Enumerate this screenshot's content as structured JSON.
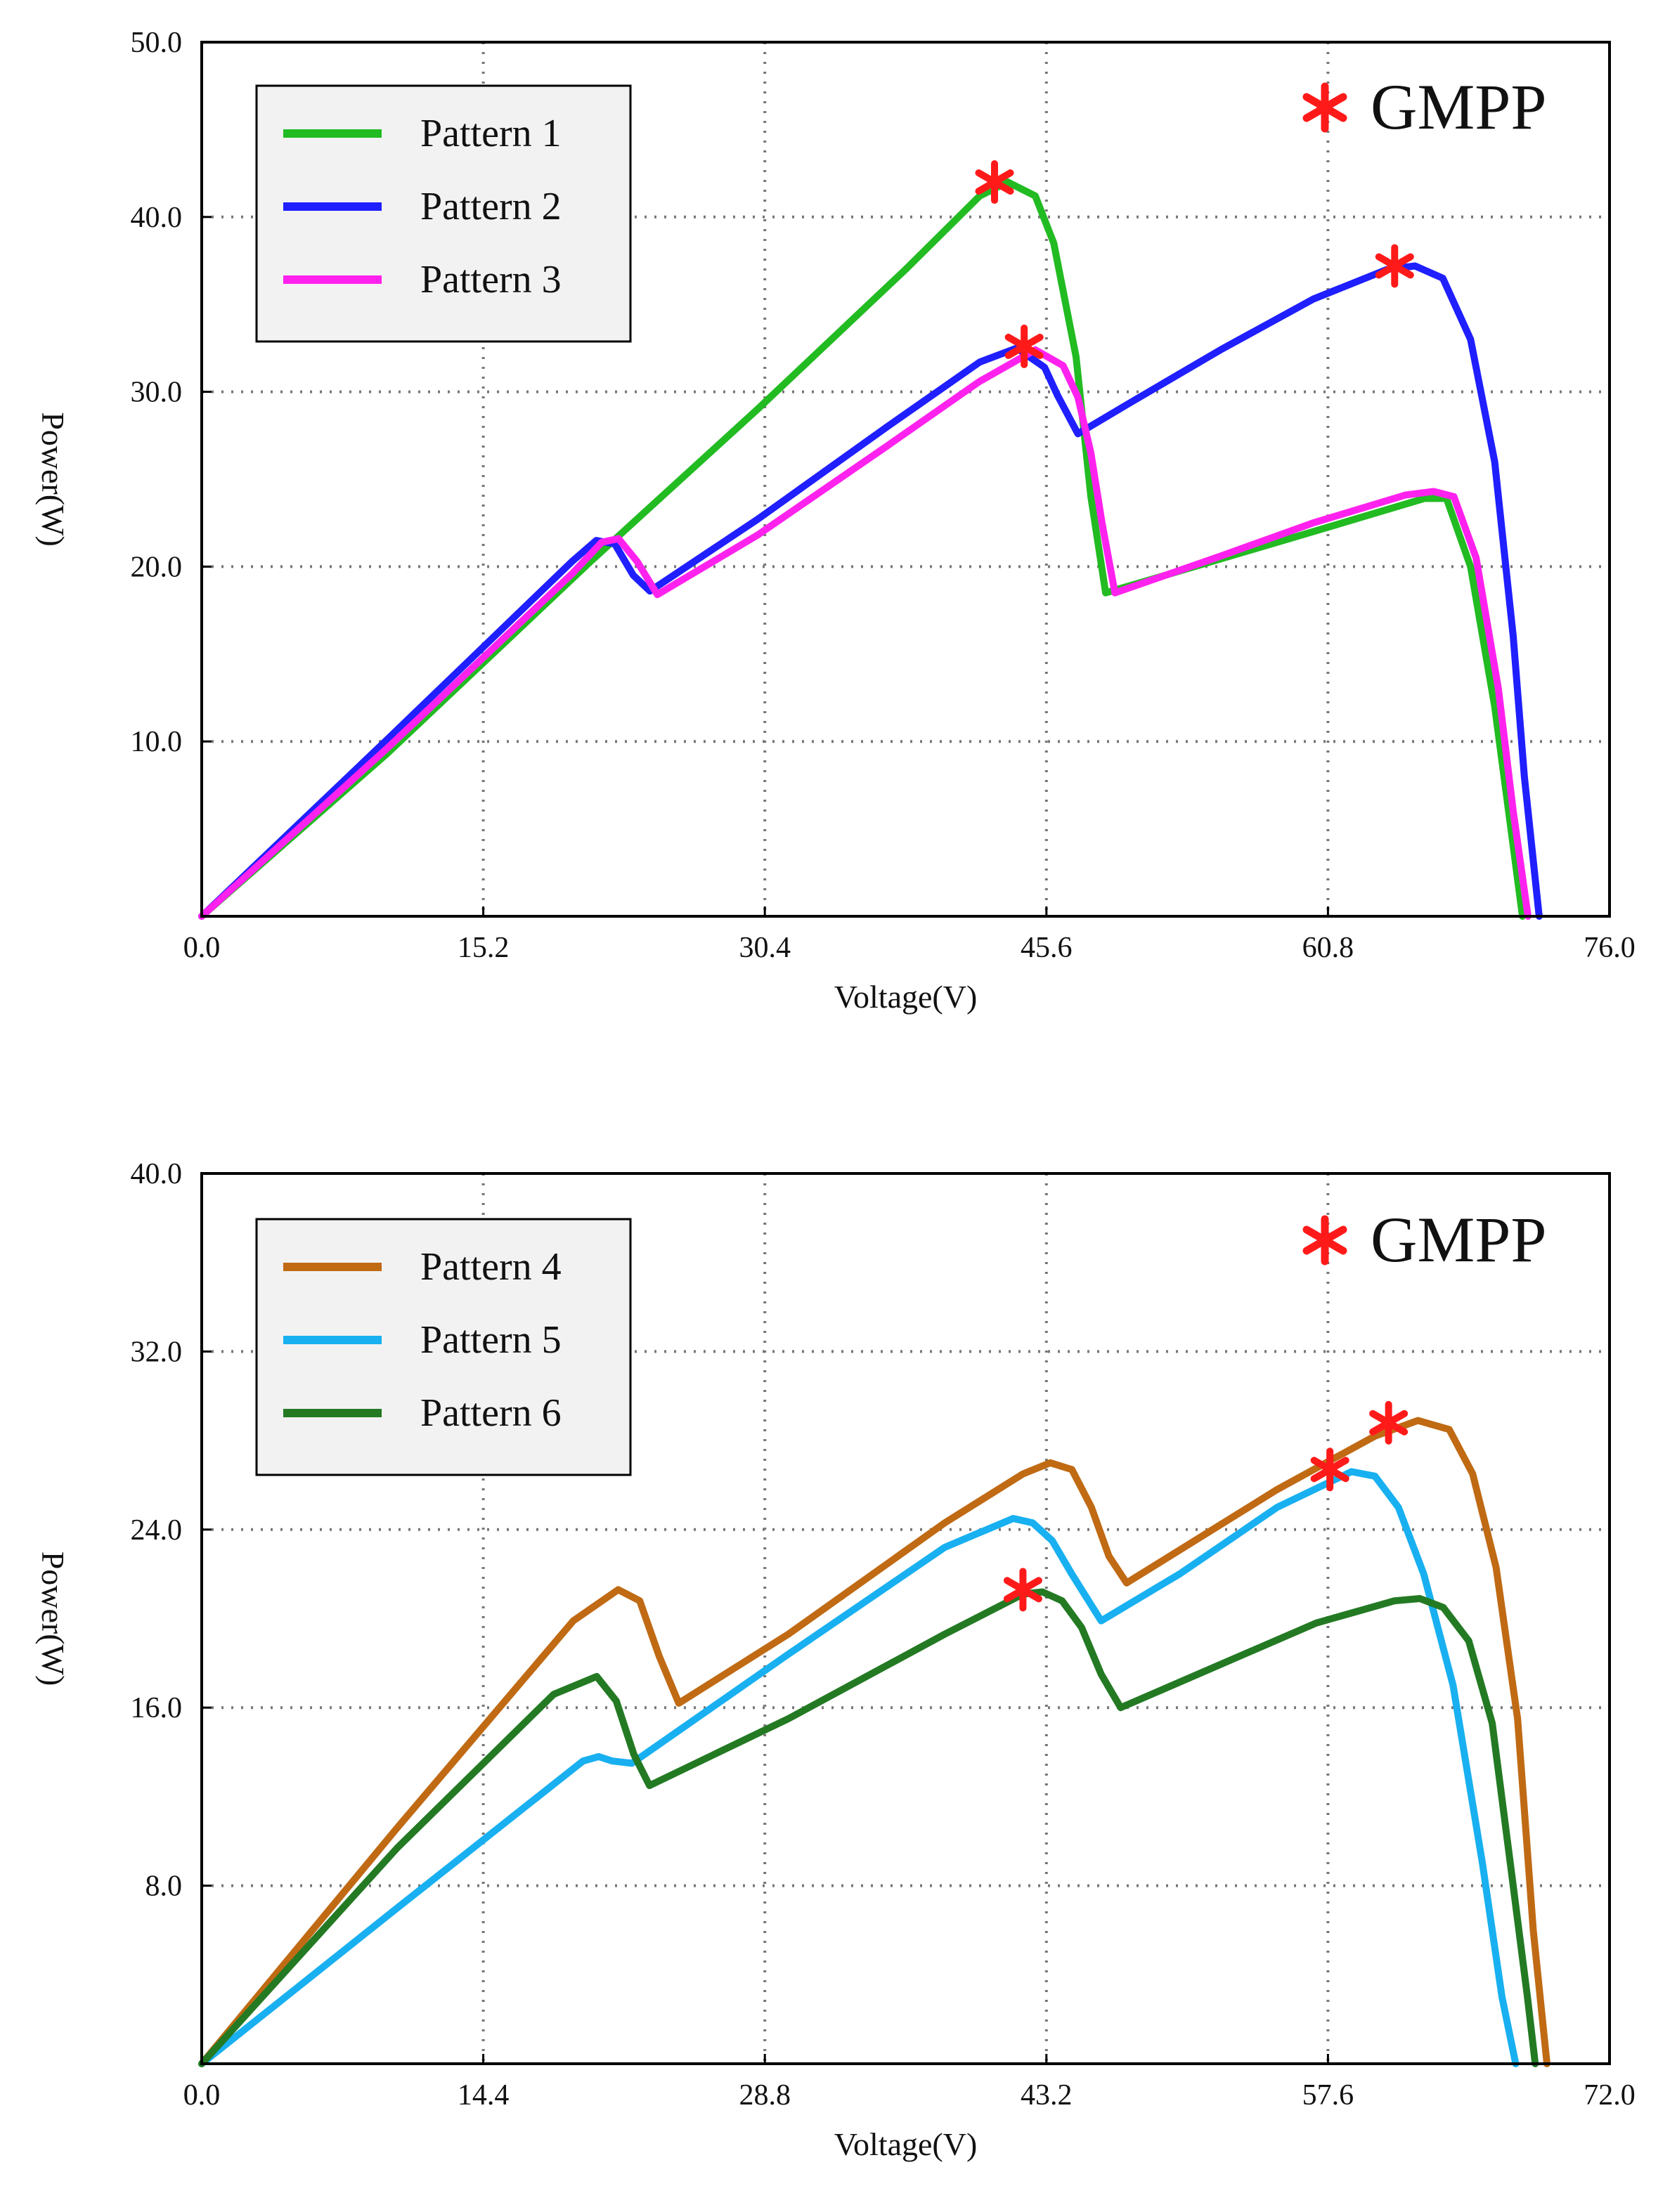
{
  "chart_data": [
    {
      "type": "line",
      "xlabel": "Voltage(V)",
      "ylabel": "Power(W)",
      "xlim": [
        0,
        76
      ],
      "ylim": [
        0,
        50
      ],
      "xticks": [
        "0.0",
        "15.2",
        "30.4",
        "45.6",
        "60.8",
        "76.0"
      ],
      "xtick_values": [
        0,
        15.2,
        30.4,
        45.6,
        60.8,
        76
      ],
      "yticks": [
        "10.0",
        "20.0",
        "30.0",
        "40.0",
        "50.0"
      ],
      "ytick_values": [
        10,
        20,
        30,
        40,
        50
      ],
      "grid": true,
      "legend_position": "top-left",
      "annotation": "GMPP",
      "annotation_color": "#ff1a1a",
      "series": [
        {
          "name": "Pattern 1",
          "color": "#22bb22",
          "x": [
            0,
            10,
            21,
            30,
            38,
            42,
            43.5,
            45,
            46,
            47.2,
            48.0,
            48.8,
            60,
            66,
            67.2,
            68.5,
            69.8,
            70.8,
            71.3
          ],
          "y": [
            0,
            9.3,
            20.3,
            29,
            37,
            41.2,
            42,
            41.2,
            38.5,
            32,
            24,
            18.5,
            22,
            23.9,
            23.9,
            20,
            12,
            4,
            0
          ]
        },
        {
          "name": "Pattern 2",
          "color": "#1f1fff",
          "x": [
            0,
            10,
            20,
            21.3,
            22.3,
            23.3,
            24.2,
            30,
            37,
            42,
            44,
            45.5,
            46.2,
            47.3,
            50,
            55,
            60,
            64,
            65.5,
            67,
            68.5,
            69.8,
            70.8,
            71.4,
            72.2
          ],
          "y": [
            0,
            10.1,
            20.3,
            21.5,
            21.3,
            19.5,
            18.6,
            22.7,
            28,
            31.7,
            32.5,
            31.4,
            29.8,
            27.6,
            29.3,
            32.4,
            35.3,
            37,
            37.2,
            36.5,
            33,
            26,
            16,
            8,
            0
          ]
        },
        {
          "name": "Pattern 3",
          "color": "#ff22ee",
          "x": [
            0,
            10,
            20,
            21.6,
            22.5,
            23.5,
            24.6,
            30,
            37,
            42,
            45,
            46.5,
            47.3,
            48,
            48.6,
            49.3,
            55,
            60,
            65,
            66.5,
            67.6,
            68.8,
            70,
            70.8,
            71.6
          ],
          "y": [
            0,
            9.6,
            19.6,
            21.4,
            21.6,
            20.3,
            18.4,
            21.8,
            26.9,
            30.6,
            32.4,
            31.5,
            29.7,
            26.5,
            22.5,
            18.5,
            20.6,
            22.5,
            24.1,
            24.3,
            24,
            20.5,
            13,
            6,
            0
          ]
        }
      ],
      "gmpp_points": [
        {
          "x": 42.8,
          "y": 42.0
        },
        {
          "x": 44.4,
          "y": 32.6
        },
        {
          "x": 64.4,
          "y": 37.2
        }
      ]
    },
    {
      "type": "line",
      "xlabel": "Voltage(V)",
      "ylabel": "Power(W)",
      "xlim": [
        0,
        72
      ],
      "ylim": [
        0,
        40
      ],
      "xticks": [
        "0.0",
        "14.4",
        "28.8",
        "43.2",
        "57.6",
        "72.0"
      ],
      "xtick_values": [
        0,
        14.4,
        28.8,
        43.2,
        57.6,
        72
      ],
      "yticks": [
        "8.0",
        "16.0",
        "24.0",
        "32.0",
        "40.0"
      ],
      "ytick_values": [
        8,
        16,
        24,
        32,
        40
      ],
      "grid": true,
      "legend_position": "top-left",
      "annotation": "GMPP",
      "annotation_color": "#ff1a1a",
      "series": [
        {
          "name": "Pattern 4",
          "color": "#c06a14",
          "x": [
            0,
            10,
            19,
            21.3,
            22.4,
            23.4,
            24.4,
            30,
            38,
            42,
            43.4,
            44.5,
            45.5,
            46.4,
            47.3,
            55,
            60,
            62.2,
            63.8,
            65,
            66.2,
            67.3,
            68.1,
            68.8
          ],
          "y": [
            0,
            10.6,
            19.9,
            21.3,
            20.8,
            18.3,
            16.2,
            19.3,
            24.3,
            26.5,
            27,
            26.7,
            25,
            22.8,
            21.6,
            25.8,
            28.2,
            28.9,
            28.5,
            26.5,
            22.3,
            15.5,
            6,
            0
          ]
        },
        {
          "name": "Pattern 5",
          "color": "#18b0f0",
          "x": [
            0,
            10,
            19.5,
            20.3,
            21.0,
            22.0,
            30,
            38,
            41.5,
            42.5,
            43.5,
            44.5,
            46.0,
            50,
            55,
            58.8,
            60.0,
            61.2,
            62.5,
            64,
            65.5,
            66.5,
            67.2
          ],
          "y": [
            0,
            7,
            13.6,
            13.8,
            13.6,
            13.5,
            18.4,
            23.2,
            24.5,
            24.3,
            23.5,
            22,
            19.9,
            22,
            25,
            26.6,
            26.4,
            25,
            22,
            17,
            9,
            3,
            0
          ]
        },
        {
          "name": "Pattern 6",
          "color": "#237a23",
          "x": [
            0,
            10,
            18,
            20.2,
            21.2,
            22.1,
            22.9,
            30,
            38,
            42,
            43,
            44,
            45,
            46,
            47,
            52,
            57,
            61,
            62.3,
            63.5,
            64.8,
            66,
            67,
            67.8,
            68.2
          ],
          "y": [
            0,
            9.7,
            16.6,
            17.4,
            16.3,
            13.9,
            12.5,
            15.5,
            19.3,
            21.1,
            21.2,
            20.8,
            19.6,
            17.5,
            16,
            17.9,
            19.8,
            20.8,
            20.9,
            20.5,
            19,
            15.3,
            8.5,
            3,
            0
          ]
        }
      ],
      "gmpp_points": [
        {
          "x": 57.7,
          "y": 26.7
        },
        {
          "x": 60.7,
          "y": 28.8
        },
        {
          "x": 42.0,
          "y": 21.3
        }
      ]
    }
  ]
}
